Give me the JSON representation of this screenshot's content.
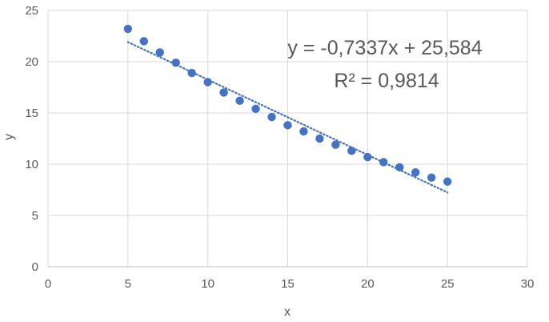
{
  "chart_data": {
    "type": "scatter",
    "title": "",
    "xlabel": "x",
    "ylabel": "y",
    "xlim": [
      0,
      30
    ],
    "ylim": [
      0,
      25
    ],
    "x_ticks": [
      "0",
      "5",
      "10",
      "15",
      "20",
      "25",
      "30"
    ],
    "y_ticks": [
      "0",
      "5",
      "10",
      "15",
      "20",
      "25"
    ],
    "grid": true,
    "legend": "none",
    "series": [
      {
        "marker_color": "#4472C4",
        "points": [
          [
            5,
            23.2
          ],
          [
            6,
            22.0
          ],
          [
            7,
            20.9
          ],
          [
            8,
            19.9
          ],
          [
            9,
            18.9
          ],
          [
            10,
            18.0
          ],
          [
            11,
            17.0
          ],
          [
            12,
            16.2
          ],
          [
            13,
            15.4
          ],
          [
            14,
            14.6
          ],
          [
            15,
            13.8
          ],
          [
            16,
            13.2
          ],
          [
            17,
            12.5
          ],
          [
            18,
            11.9
          ],
          [
            19,
            11.3
          ],
          [
            20,
            10.7
          ],
          [
            21,
            10.2
          ],
          [
            22,
            9.7
          ],
          [
            23,
            9.2
          ],
          [
            24,
            8.7
          ],
          [
            25,
            8.3
          ]
        ]
      }
    ],
    "trendline": {
      "style": "dotted",
      "color": "#4472C4",
      "x_range": [
        5,
        25
      ],
      "slope": -0.7337,
      "intercept": 25.584
    },
    "annotations": {
      "equation": "y = -0,7337x + 25,584",
      "r_squared": "R² = 0,9814"
    }
  }
}
